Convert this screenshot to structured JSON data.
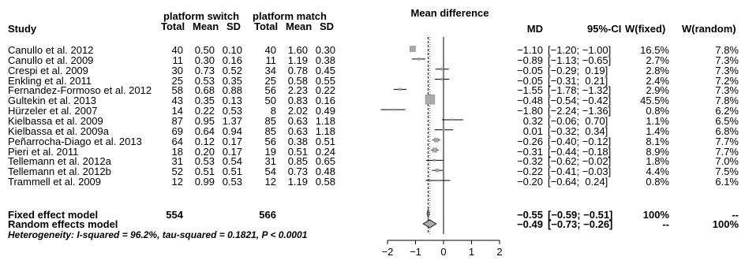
{
  "headers": {
    "study": "Study",
    "group1": "platform switch",
    "group2": "platform match",
    "total1": "Total",
    "mean1": "Mean",
    "sd1": "SD",
    "total2": "Total",
    "mean2": "Mean",
    "sd2": "SD",
    "mean_difference": "Mean difference",
    "md": "MD",
    "ci": "95%-CI",
    "wfixed": "W(fixed)",
    "wrandom": "W(random)"
  },
  "studies": [
    {
      "study": "Canullo et al. 2012",
      "n1": "40",
      "m1": "0.50",
      "sd1": "0.10",
      "n2": "40",
      "m2": "1.60",
      "sd2": "0.30",
      "md_text": "−1.10",
      "ci_text": "[−1.20; −1.00]",
      "wfixed": "16.5%",
      "wrandom": "7.8%"
    },
    {
      "study": "Canullo et al. 2009",
      "n1": "11",
      "m1": "0.30",
      "sd1": "0.16",
      "n2": "11",
      "m2": "1.19",
      "sd2": "0.38",
      "md_text": "−0.89",
      "ci_text": "[−1.13; −0.65]",
      "wfixed": "2.7%",
      "wrandom": "7.3%"
    },
    {
      "study": "Crespi et al. 2009",
      "n1": "30",
      "m1": "0.73",
      "sd1": "0.52",
      "n2": "34",
      "m2": "0.78",
      "sd2": "0.45",
      "md_text": "−0.05",
      "ci_text": "[−0.29;  0.19]",
      "wfixed": "2.8%",
      "wrandom": "7.3%"
    },
    {
      "study": "Enkling et al. 2011",
      "n1": "25",
      "m1": "0.53",
      "sd1": "0.35",
      "n2": "25",
      "m2": "0.58",
      "sd2": "0.55",
      "md_text": "−0.05",
      "ci_text": "[−0.31;  0.21]",
      "wfixed": "2.4%",
      "wrandom": "7.2%"
    },
    {
      "study": "Fernandez-Formoso et al. 2012",
      "n1": "58",
      "m1": "0.68",
      "sd1": "0.88",
      "n2": "56",
      "m2": "2.23",
      "sd2": "0.22",
      "md_text": "−1.55",
      "ci_text": "[−1.78; −1.32]",
      "wfixed": "2.9%",
      "wrandom": "7.3%"
    },
    {
      "study": "Gultekin et al. 2013",
      "n1": "43",
      "m1": "0.35",
      "sd1": "0.13",
      "n2": "50",
      "m2": "0.83",
      "sd2": "0.16",
      "md_text": "−0.48",
      "ci_text": "[−0.54; −0.42]",
      "wfixed": "45.5%",
      "wrandom": "7.8%"
    },
    {
      "study": "Hürzeler et al. 2007",
      "n1": "14",
      "m1": "0.22",
      "sd1": "0.53",
      "n2": "8",
      "m2": "2.02",
      "sd2": "0.49",
      "md_text": "−1.80",
      "ci_text": "[−2.24; −1.36]",
      "wfixed": "0.8%",
      "wrandom": "6.2%"
    },
    {
      "study": "Kielbassa et al. 2009",
      "n1": "87",
      "m1": "0.95",
      "sd1": "1.37",
      "n2": "85",
      "m2": "0.63",
      "sd2": "1.18",
      "md_text": "0.32",
      "ci_text": "[−0.06;  0.70]",
      "wfixed": "1.1%",
      "wrandom": "6.5%"
    },
    {
      "study": "Kielbassa et al. 2009a",
      "n1": "69",
      "m1": "0.64",
      "sd1": "0.94",
      "n2": "85",
      "m2": "0.63",
      "sd2": "1.18",
      "md_text": "0.01",
      "ci_text": "[−0.32;  0.34]",
      "wfixed": "1.4%",
      "wrandom": "6.8%"
    },
    {
      "study": "Peñarrocha-Diago et al. 2013",
      "n1": "64",
      "m1": "0.12",
      "sd1": "0.17",
      "n2": "56",
      "m2": "0.38",
      "sd2": "0.51",
      "md_text": "−0.26",
      "ci_text": "[−0.40; −0.12]",
      "wfixed": "8.1%",
      "wrandom": "7.7%"
    },
    {
      "study": "Pieri et al. 2011",
      "n1": "18",
      "m1": "0.20",
      "sd1": "0.17",
      "n2": "19",
      "m2": "0.51",
      "sd2": "0.24",
      "md_text": "−0.31",
      "ci_text": "[−0.44; −0.18]",
      "wfixed": "8.9%",
      "wrandom": "7.7%"
    },
    {
      "study": "Tellemann et al. 2012a",
      "n1": "31",
      "m1": "0.53",
      "sd1": "0.54",
      "n2": "31",
      "m2": "0.85",
      "sd2": "0.65",
      "md_text": "−0.32",
      "ci_text": "[−0.62; −0.02]",
      "wfixed": "1.8%",
      "wrandom": "7.0%"
    },
    {
      "study": "Tellemann et al. 2012b",
      "n1": "52",
      "m1": "0.51",
      "sd1": "0.51",
      "n2": "54",
      "m2": "0.73",
      "sd2": "0.48",
      "md_text": "−0.22",
      "ci_text": "[−0.41; −0.03]",
      "wfixed": "4.4%",
      "wrandom": "7.5%"
    },
    {
      "study": "Trammell et al. 2009",
      "n1": "12",
      "m1": "0.99",
      "sd1": "0.53",
      "n2": "12",
      "m2": "1.19",
      "sd2": "0.58",
      "md_text": "−0.20",
      "ci_text": "[−0.64;  0.24]",
      "wfixed": "0.8%",
      "wrandom": "6.1%"
    }
  ],
  "fixed": {
    "label": "Fixed effect model",
    "n1": "554",
    "n2": "566",
    "md_text": "−0.55",
    "ci_text": "[−0.59; −0.51]",
    "wfixed": "100%",
    "wrandom": "--"
  },
  "random": {
    "label": "Random effects model",
    "md_text": "−0.49",
    "ci_text": "[−0.73; −0.26]",
    "wfixed": "--",
    "wrandom": "100%"
  },
  "heterogeneity": "Heterogeneity: I-squared = 96.2%, tau-squared = 0.1821, P < 0.0001",
  "chart_data": {
    "type": "forest",
    "xlim": [
      -2,
      2
    ],
    "x_ticks": [
      "−2",
      "−1",
      "0",
      "1",
      "2"
    ],
    "x_tick_values": [
      -2,
      -1,
      0,
      1,
      2
    ],
    "reference_line": 0,
    "studies": [
      {
        "md": -1.1,
        "lo": -1.2,
        "hi": -1.0,
        "wfixed": 16.5
      },
      {
        "md": -0.89,
        "lo": -1.13,
        "hi": -0.65,
        "wfixed": 2.7
      },
      {
        "md": -0.05,
        "lo": -0.29,
        "hi": 0.19,
        "wfixed": 2.8
      },
      {
        "md": -0.05,
        "lo": -0.31,
        "hi": 0.21,
        "wfixed": 2.4
      },
      {
        "md": -1.55,
        "lo": -1.78,
        "hi": -1.32,
        "wfixed": 2.9
      },
      {
        "md": -0.48,
        "lo": -0.54,
        "hi": -0.42,
        "wfixed": 45.5
      },
      {
        "md": -1.8,
        "lo": -2.24,
        "hi": -1.36,
        "wfixed": 0.8
      },
      {
        "md": 0.32,
        "lo": -0.06,
        "hi": 0.7,
        "wfixed": 1.1
      },
      {
        "md": 0.01,
        "lo": -0.32,
        "hi": 0.34,
        "wfixed": 1.4
      },
      {
        "md": -0.26,
        "lo": -0.4,
        "hi": -0.12,
        "wfixed": 8.1
      },
      {
        "md": -0.31,
        "lo": -0.44,
        "hi": -0.18,
        "wfixed": 8.9
      },
      {
        "md": -0.32,
        "lo": -0.62,
        "hi": -0.02,
        "wfixed": 1.8
      },
      {
        "md": -0.22,
        "lo": -0.41,
        "hi": -0.03,
        "wfixed": 4.4
      },
      {
        "md": -0.2,
        "lo": -0.64,
        "hi": 0.24,
        "wfixed": 0.8
      }
    ],
    "fixed": {
      "md": -0.55,
      "lo": -0.59,
      "hi": -0.51
    },
    "random": {
      "md": -0.49,
      "lo": -0.73,
      "hi": -0.26
    }
  }
}
